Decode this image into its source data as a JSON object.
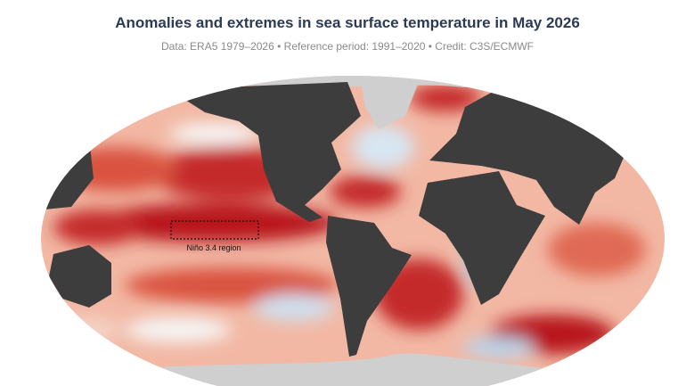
{
  "title": "Anomalies and extremes in sea surface temperature in May 2026",
  "subtitle": "Data: ERA5 1979–2026 • Reference period: 1991–2020 • Credit: C3S/ECMWF",
  "annotation": "Niño 3.4 region"
}
